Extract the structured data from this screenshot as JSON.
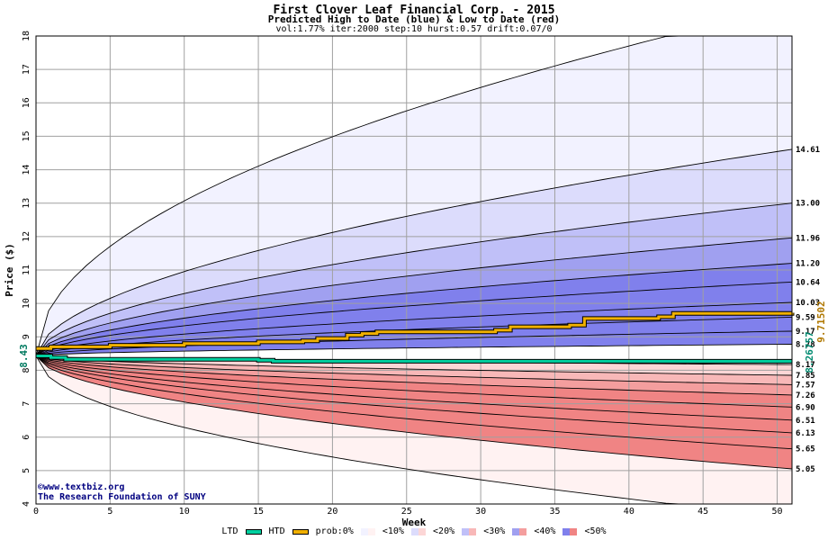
{
  "title": "First Clover Leaf Financial Corp. - 2015",
  "subtitle": "Predicted High to Date (blue) &  Low to Date (red)",
  "params": "vol:1.77% iter:2000 step:10 hurst:0.57 drift:0.07/0",
  "credit_url": "www.textbiz.org",
  "credit_org": "The Research Foundation of SUNY",
  "colors": {
    "htd": "#f0b000",
    "ltd": "#00d0a0",
    "blue_bands": [
      "#f2f2ff",
      "#dcdcfc",
      "#c0c0f8",
      "#a0a0f0",
      "#8080ec"
    ],
    "red_bands": [
      "#fff2f2",
      "#fcd6d6",
      "#f8b8b8",
      "#f49e9e",
      "#f08484"
    ]
  },
  "legend": {
    "ltd": "LTD",
    "htd": "HTD",
    "prob": "prob:0%",
    "b10": "<10%",
    "b20": "<20%",
    "b30": "<30%",
    "b40": "<40%",
    "b50": "<50%"
  },
  "chart_data": {
    "type": "area",
    "title": "First Clover Leaf Financial Corp. - 2015",
    "xlabel": "Week",
    "ylabel": "Price ($)",
    "xlim": [
      0,
      51
    ],
    "ylim": [
      4,
      18
    ],
    "xticks": [
      0,
      5,
      10,
      15,
      20,
      25,
      30,
      35,
      40,
      45,
      50
    ],
    "yticks": [
      4,
      5,
      6,
      7,
      8,
      9,
      10,
      11,
      12,
      13,
      14,
      15,
      16,
      17,
      18
    ],
    "start_price": 8.43,
    "start_label": "8.43",
    "ltd_label": "8.26757",
    "htd_label": "9.71502",
    "upper_quantile_ends": [
      14.61,
      13.0,
      11.96,
      11.2,
      10.64,
      10.03,
      9.59,
      9.17,
      8.78
    ],
    "upper_quantile_labels": [
      "14.61",
      "13.00",
      "11.96",
      "11.20",
      "10.64",
      "10.03",
      "9.59",
      "9.17",
      "8.78"
    ],
    "lower_quantile_ends": [
      8.17,
      7.85,
      7.57,
      7.26,
      6.9,
      6.51,
      6.13,
      5.65,
      5.05
    ],
    "lower_quantile_labels": [
      "8.17",
      "7.85",
      "7.57",
      "7.26",
      "6.90",
      "6.51",
      "6.13",
      "5.65",
      "5.05"
    ],
    "extreme_high_end": 18.9,
    "extreme_low_end": 3.6,
    "htd_path": {
      "x": [
        0,
        1,
        5,
        10,
        15,
        18,
        19,
        21,
        22,
        23,
        31,
        32,
        36,
        37,
        42,
        43,
        51
      ],
      "y": [
        8.65,
        8.7,
        8.75,
        8.8,
        8.85,
        8.88,
        8.95,
        9.05,
        9.1,
        9.15,
        9.2,
        9.3,
        9.35,
        9.55,
        9.6,
        9.7,
        9.72
      ]
    },
    "ltd_path": {
      "x": [
        0,
        1,
        2,
        15,
        16,
        51
      ],
      "y": [
        8.43,
        8.38,
        8.33,
        8.3,
        8.27,
        8.27
      ]
    }
  }
}
